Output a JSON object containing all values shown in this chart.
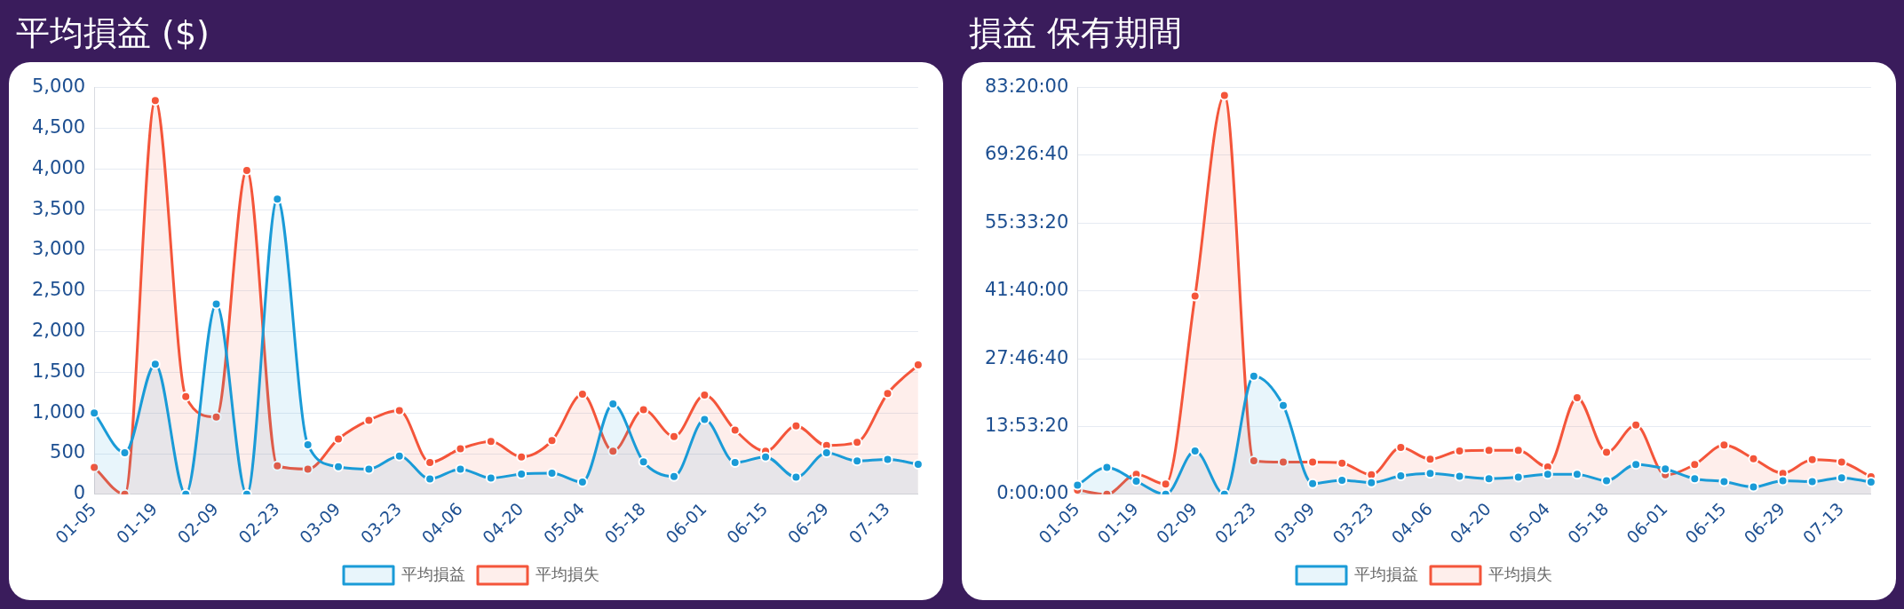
{
  "chart_data": [
    {
      "type": "area",
      "title": "平均損益 ($)",
      "categories": [
        "01-05",
        null,
        "01-19",
        null,
        "02-09",
        null,
        "02-23",
        null,
        "03-09",
        null,
        "03-23",
        null,
        "04-06",
        null,
        "04-20",
        null,
        "05-04",
        null,
        "05-18",
        null,
        "06-01",
        null,
        "06-15",
        null,
        "06-29",
        null,
        "07-13",
        null
      ],
      "series": [
        {
          "name": "平均損益",
          "color": "#1a9bd7",
          "values": [
            1000,
            510,
            1600,
            0,
            2340,
            0,
            3630,
            610,
            340,
            310,
            470,
            190,
            310,
            200,
            250,
            260,
            150,
            1110,
            400,
            220,
            920,
            390,
            460,
            210,
            510,
            410,
            430,
            370
          ]
        },
        {
          "name": "平均損失",
          "color": "#f4553a",
          "values": [
            330,
            0,
            4840,
            1200,
            950,
            3980,
            350,
            310,
            680,
            910,
            1030,
            390,
            560,
            650,
            460,
            660,
            1230,
            530,
            1040,
            710,
            1220,
            790,
            530,
            840,
            600,
            640,
            1240,
            1590
          ]
        }
      ],
      "ylim": [
        0,
        5000
      ],
      "yticks": [
        {
          "value": 0,
          "label": "0"
        },
        {
          "value": 500,
          "label": "500"
        },
        {
          "value": 1000,
          "label": "1,000"
        },
        {
          "value": 1500,
          "label": "1,500"
        },
        {
          "value": 2000,
          "label": "2,000"
        },
        {
          "value": 2500,
          "label": "2,500"
        },
        {
          "value": 3000,
          "label": "3,000"
        },
        {
          "value": 3500,
          "label": "3,500"
        },
        {
          "value": 4000,
          "label": "4,000"
        },
        {
          "value": 4500,
          "label": "4,500"
        },
        {
          "value": 5000,
          "label": "5,000"
        }
      ],
      "grid": "y",
      "legend": "bottom",
      "marker": "circle"
    },
    {
      "type": "area",
      "title": "損益 保有期間",
      "categories": [
        "01-05",
        null,
        "01-19",
        null,
        "02-09",
        null,
        "02-23",
        null,
        "03-09",
        null,
        "03-23",
        null,
        "04-06",
        null,
        "04-20",
        null,
        "05-04",
        null,
        "05-18",
        null,
        "06-01",
        null,
        "06-15",
        null,
        "06-29",
        null,
        "07-13",
        null
      ],
      "series": [
        {
          "name": "平均損益",
          "color": "#1a9bd7",
          "values": [
            1.9,
            5.5,
            2.7,
            0,
            8.9,
            0,
            24.2,
            18.2,
            2.2,
            2.9,
            2.4,
            3.8,
            4.3,
            3.7,
            3.2,
            3.5,
            4.1,
            4.1,
            2.8,
            6.1,
            5.2,
            3.2,
            2.6,
            1.5,
            2.8,
            2.6,
            3.4,
            2.5
          ]
        },
        {
          "name": "平均損失",
          "color": "#f4553a",
          "values": [
            0.9,
            0,
            4.1,
            2.1,
            40.6,
            81.7,
            6.9,
            6.6,
            6.6,
            6.4,
            4.0,
            9.6,
            7.2,
            8.9,
            9.0,
            9.0,
            5.6,
            19.8,
            8.6,
            14.2,
            4.0,
            6.1,
            10.1,
            7.3,
            4.3,
            7.1,
            6.6,
            3.6
          ]
        }
      ],
      "ylim": [
        0,
        83.3333
      ],
      "yticks": [
        {
          "value": 0,
          "label": "0:00:00"
        },
        {
          "value": 13.8889,
          "label": "13:53:20"
        },
        {
          "value": 27.7778,
          "label": "27:46:40"
        },
        {
          "value": 41.6667,
          "label": "41:40:00"
        },
        {
          "value": 55.5556,
          "label": "55:33:20"
        },
        {
          "value": 69.4444,
          "label": "69:26:40"
        },
        {
          "value": 83.3333,
          "label": "83:20:00"
        }
      ],
      "grid": "y",
      "legend": "bottom",
      "marker": "circle"
    }
  ]
}
